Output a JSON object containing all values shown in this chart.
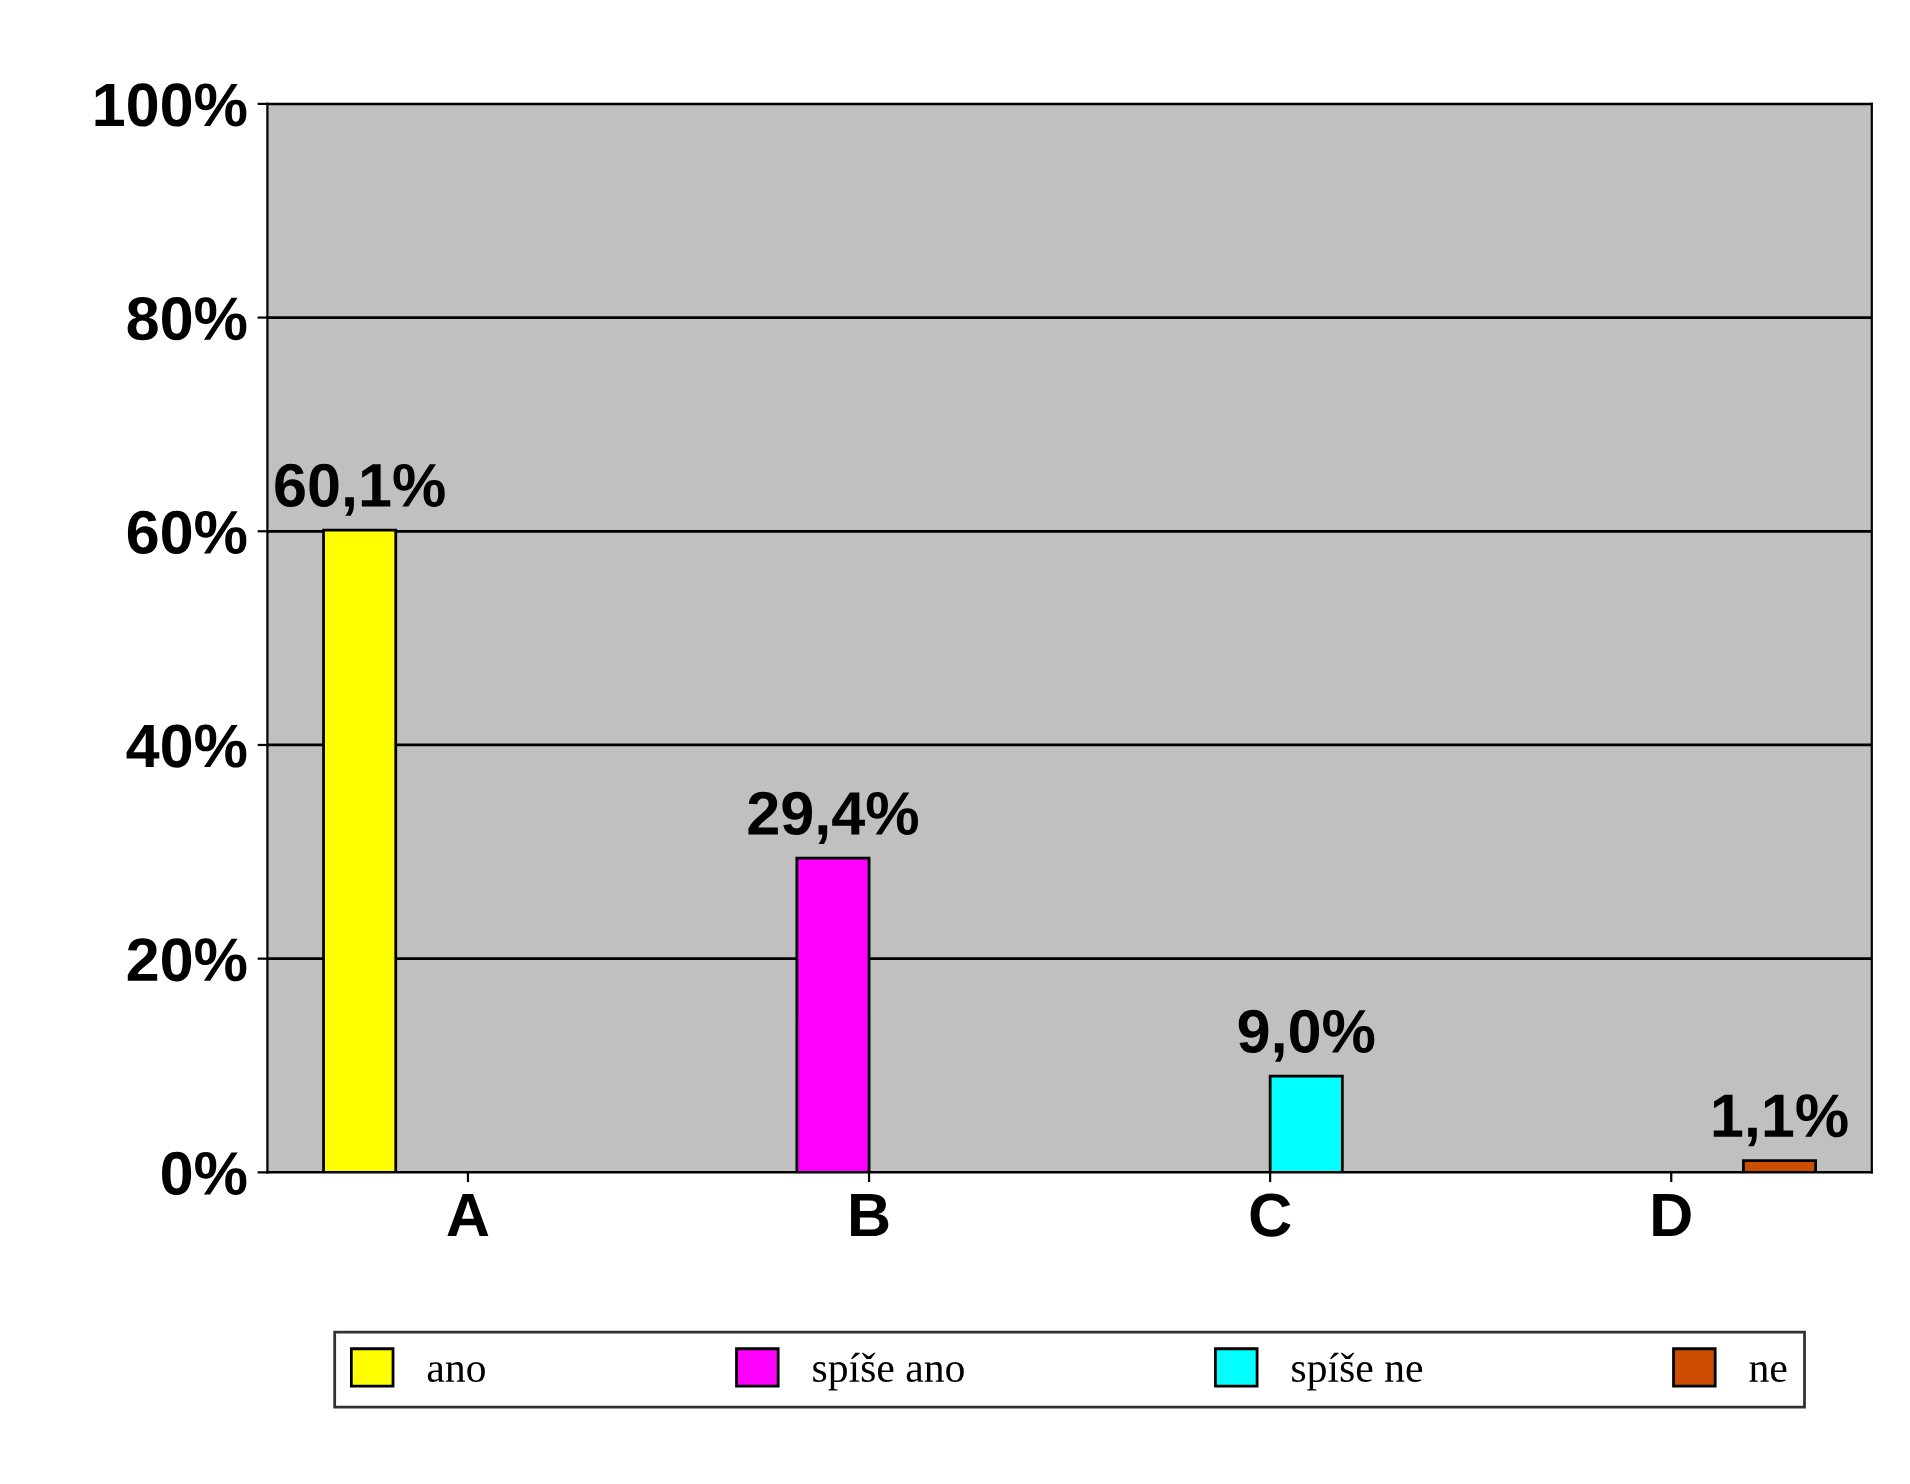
{
  "chart_data": {
    "type": "bar",
    "categories": [
      "A",
      "B",
      "C",
      "D"
    ],
    "series": [
      {
        "name": "ano",
        "color": "#ffff00",
        "values": [
          60.1,
          null,
          null,
          null
        ],
        "value_labels": [
          "60,1%",
          null,
          null,
          null
        ]
      },
      {
        "name": "spíše ano",
        "color": "#ff00ff",
        "values": [
          null,
          29.4,
          null,
          null
        ],
        "value_labels": [
          null,
          "29,4%",
          null,
          null
        ]
      },
      {
        "name": "spíše ne",
        "color": "#00ffff",
        "values": [
          null,
          null,
          9.0,
          null
        ],
        "value_labels": [
          null,
          null,
          "9,0%",
          null
        ]
      },
      {
        "name": "ne",
        "color": "#cc4c00",
        "values": [
          null,
          null,
          null,
          1.1
        ],
        "value_labels": [
          null,
          null,
          null,
          "1,1%"
        ]
      }
    ],
    "ylim": [
      0,
      100
    ],
    "yticks": [
      {
        "value": 0,
        "label": "0%"
      },
      {
        "value": 20,
        "label": "20%"
      },
      {
        "value": 40,
        "label": "40%"
      },
      {
        "value": 60,
        "label": "60%"
      },
      {
        "value": 80,
        "label": "80%"
      },
      {
        "value": 100,
        "label": "100%"
      }
    ],
    "grid": "y",
    "legend": "bottom"
  }
}
